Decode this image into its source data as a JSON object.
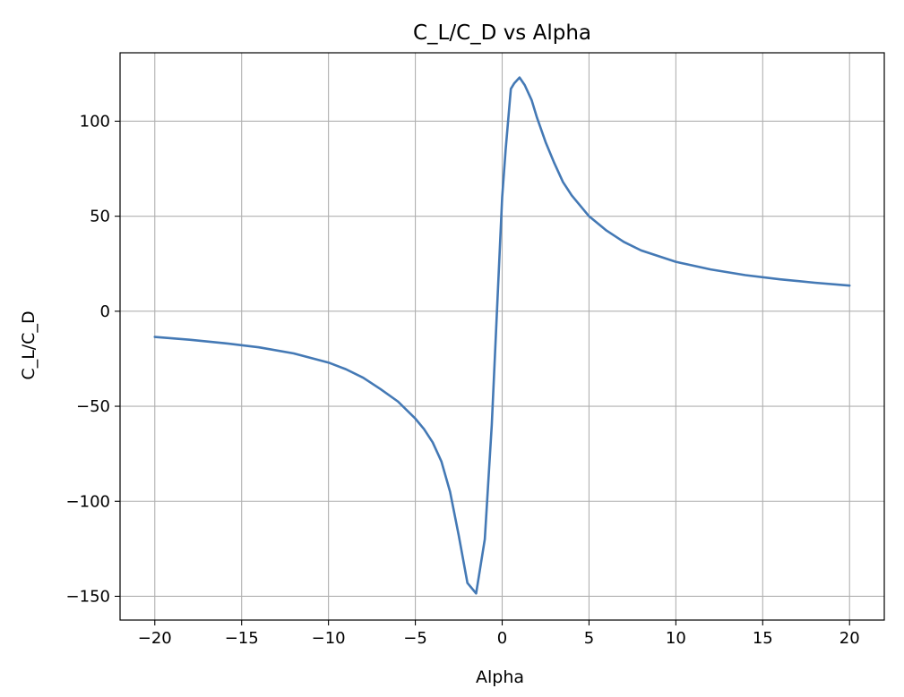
{
  "chart_data": {
    "type": "line",
    "title": "C_L/C_D vs Alpha",
    "xlabel": "Alpha",
    "ylabel": "C_L/C_D",
    "xlim": [
      -22,
      22
    ],
    "ylim": [
      -162.5,
      136
    ],
    "grid": true,
    "xticks": [
      -20,
      -15,
      -10,
      -5,
      0,
      5,
      10,
      15,
      20
    ],
    "xtick_labels": [
      "−20",
      "−15",
      "−10",
      "−5",
      "0",
      "5",
      "10",
      "15",
      "20"
    ],
    "yticks": [
      -150,
      -100,
      -50,
      0,
      50,
      100
    ],
    "ytick_labels": [
      "−150",
      "−100",
      "−50",
      "0",
      "50",
      "100"
    ],
    "series": [
      {
        "color": "#4479b5",
        "x": [
          -20,
          -18,
          -16,
          -14,
          -12,
          -10,
          -9,
          -8,
          -7,
          -6,
          -5,
          -4.5,
          -4,
          -3.5,
          -3,
          -2.5,
          -2,
          -1.5,
          -1,
          -0.6,
          -0.3,
          0,
          0.2,
          0.5,
          0.7,
          1,
          1.3,
          1.7,
          2,
          2.5,
          3,
          3.5,
          4,
          5,
          6,
          7,
          8,
          10,
          12,
          14,
          16,
          18,
          20
        ],
        "y": [
          -13.5,
          -15,
          -16.8,
          -19,
          -22.2,
          -27,
          -30.5,
          -35,
          -41,
          -47.5,
          -56.5,
          -62,
          -69,
          -79,
          -95,
          -118,
          -143,
          -148.5,
          -120,
          -60,
          0,
          60,
          85,
          117,
          120,
          123,
          119,
          111,
          102,
          89,
          78,
          68,
          61,
          50,
          42.5,
          36.5,
          32,
          26,
          22,
          19,
          16.8,
          15,
          13.5
        ]
      }
    ]
  }
}
